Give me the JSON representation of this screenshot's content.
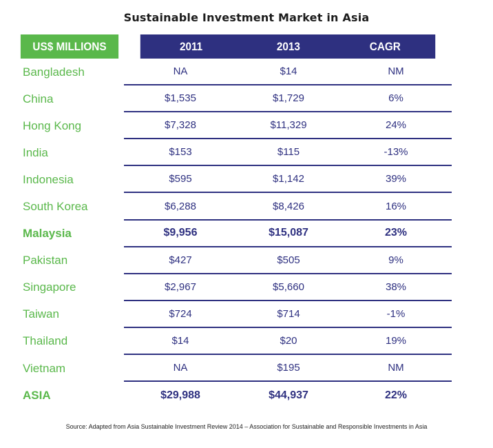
{
  "title": "Sustainable Investment Market in Asia",
  "headers": [
    "US$ MILLIONS",
    "2011",
    "2013",
    "CAGR"
  ],
  "rows": [
    {
      "name": "Bangladesh",
      "v2011": "NA",
      "v2013": "$14",
      "cagr": "NM",
      "bold": false
    },
    {
      "name": "China",
      "v2011": "$1,535",
      "v2013": "$1,729",
      "cagr": "6%",
      "bold": false
    },
    {
      "name": "Hong Kong",
      "v2011": "$7,328",
      "v2013": "$11,329",
      "cagr": "24%",
      "bold": false
    },
    {
      "name": "India",
      "v2011": "$153",
      "v2013": "$115",
      "cagr": "-13%",
      "bold": false
    },
    {
      "name": "Indonesia",
      "v2011": "$595",
      "v2013": "$1,142",
      "cagr": "39%",
      "bold": false
    },
    {
      "name": "South Korea",
      "v2011": "$6,288",
      "v2013": "$8,426",
      "cagr": "16%",
      "bold": false
    },
    {
      "name": "Malaysia",
      "v2011": "$9,956",
      "v2013": "$15,087",
      "cagr": "23%",
      "bold": true
    },
    {
      "name": "Pakistan",
      "v2011": "$427",
      "v2013": "$505",
      "cagr": "9%",
      "bold": false
    },
    {
      "name": "Singapore",
      "v2011": "$2,967",
      "v2013": "$5,660",
      "cagr": "38%",
      "bold": false
    },
    {
      "name": "Taiwan",
      "v2011": "$724",
      "v2013": "$714",
      "cagr": "-1%",
      "bold": false
    },
    {
      "name": "Thailand",
      "v2011": "$14",
      "v2013": "$20",
      "cagr": "19%",
      "bold": false
    },
    {
      "name": "Vietnam",
      "v2011": "NA",
      "v2013": "$195",
      "cagr": "NM",
      "bold": false
    },
    {
      "name": "ASIA",
      "v2011": "$29,988",
      "v2013": "$44,937",
      "cagr": "22%",
      "bold": true
    }
  ],
  "source": "Source: Adapted  from  Asia Sustainable Investment Review 2014 – Association for Sustainable and Responsible Investments in Asia",
  "colors": {
    "green": "#5ab84b",
    "navy": "#2e3080"
  }
}
